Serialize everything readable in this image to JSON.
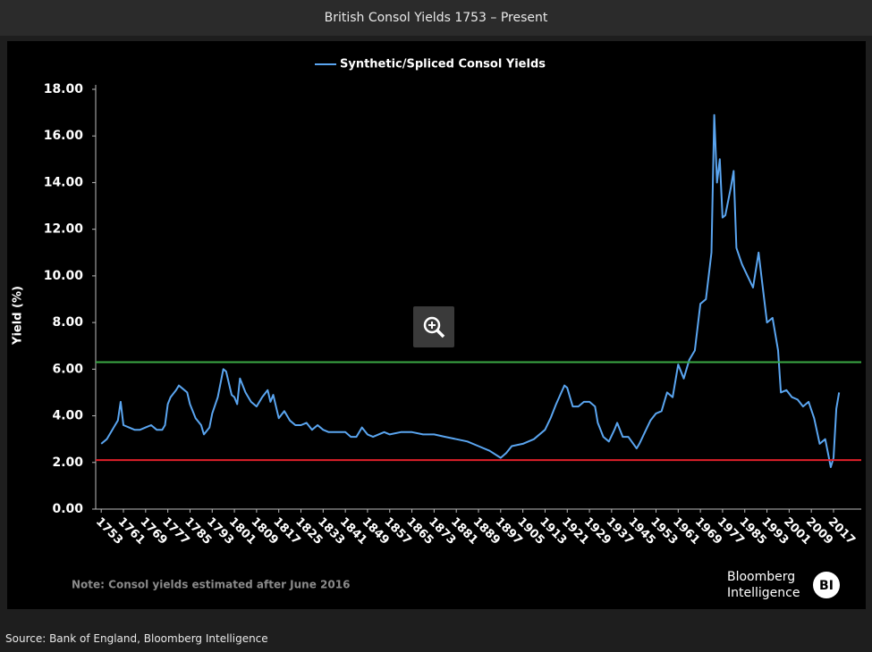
{
  "header": {
    "title": "British Consol Yields 1753 – Present"
  },
  "chart_data": {
    "type": "line",
    "legend": "Synthetic/Spliced Consol Yields",
    "ylabel": "Yield (%)",
    "series": [
      {
        "name": "Synthetic/Spliced Consol Yields",
        "color": "#5aa5f0",
        "x": [
          1753,
          1755,
          1757,
          1759,
          1760,
          1761,
          1763,
          1765,
          1767,
          1769,
          1771,
          1773,
          1775,
          1776,
          1777,
          1778,
          1780,
          1781,
          1782,
          1784,
          1785,
          1787,
          1789,
          1790,
          1792,
          1793,
          1795,
          1797,
          1798,
          1800,
          1801,
          1802,
          1803,
          1805,
          1807,
          1809,
          1811,
          1813,
          1814,
          1815,
          1817,
          1819,
          1821,
          1823,
          1825,
          1827,
          1829,
          1831,
          1833,
          1835,
          1837,
          1839,
          1841,
          1843,
          1845,
          1847,
          1849,
          1851,
          1853,
          1855,
          1857,
          1861,
          1865,
          1869,
          1873,
          1877,
          1881,
          1885,
          1889,
          1893,
          1897,
          1899,
          1901,
          1905,
          1909,
          1913,
          1915,
          1917,
          1920,
          1921,
          1923,
          1925,
          1927,
          1929,
          1931,
          1932,
          1934,
          1936,
          1938,
          1939,
          1941,
          1943,
          1946,
          1947,
          1949,
          1951,
          1953,
          1955,
          1957,
          1959,
          1961,
          1963,
          1965,
          1967,
          1969,
          1971,
          1973,
          1974,
          1975,
          1976,
          1977,
          1978,
          1980,
          1981,
          1982,
          1984,
          1986,
          1988,
          1990,
          1991,
          1993,
          1995,
          1997,
          1998,
          2000,
          2002,
          2004,
          2006,
          2008,
          2010,
          2012,
          2014,
          2016,
          2017,
          2018,
          2019
        ],
        "values": [
          2.8,
          3.0,
          3.4,
          3.8,
          4.6,
          3.6,
          3.5,
          3.4,
          3.4,
          3.5,
          3.6,
          3.4,
          3.4,
          3.6,
          4.5,
          4.8,
          5.1,
          5.3,
          5.2,
          5.0,
          4.5,
          3.9,
          3.6,
          3.2,
          3.5,
          4.1,
          4.8,
          6.0,
          5.9,
          4.9,
          4.8,
          4.5,
          5.6,
          5.0,
          4.6,
          4.4,
          4.8,
          5.1,
          4.6,
          4.9,
          3.9,
          4.2,
          3.8,
          3.6,
          3.6,
          3.7,
          3.4,
          3.6,
          3.4,
          3.3,
          3.3,
          3.3,
          3.3,
          3.1,
          3.1,
          3.5,
          3.2,
          3.1,
          3.2,
          3.3,
          3.2,
          3.3,
          3.3,
          3.2,
          3.2,
          3.1,
          3.0,
          2.9,
          2.7,
          2.5,
          2.2,
          2.4,
          2.7,
          2.8,
          3.0,
          3.4,
          3.9,
          4.5,
          5.3,
          5.2,
          4.4,
          4.4,
          4.6,
          4.6,
          4.4,
          3.7,
          3.1,
          2.9,
          3.4,
          3.7,
          3.1,
          3.1,
          2.6,
          2.8,
          3.3,
          3.8,
          4.1,
          4.2,
          5.0,
          4.8,
          6.2,
          5.6,
          6.4,
          6.8,
          8.8,
          9.0,
          11.0,
          16.9,
          14.0,
          15.0,
          12.5,
          12.6,
          13.8,
          14.5,
          11.2,
          10.5,
          10.0,
          9.5,
          11.0,
          10.0,
          8.0,
          8.2,
          6.8,
          5.0,
          5.1,
          4.8,
          4.7,
          4.4,
          4.6,
          3.9,
          2.8,
          3.0,
          1.8,
          2.2,
          4.3,
          5.0
        ]
      }
    ],
    "hlines": [
      {
        "value": 6.3,
        "color": "#3aa845"
      },
      {
        "value": 2.1,
        "color": "#e0202a"
      }
    ],
    "xlim": [
      1751,
      2027
    ],
    "xticks": [
      1753,
      1761,
      1769,
      1777,
      1785,
      1793,
      1801,
      1809,
      1817,
      1825,
      1833,
      1841,
      1849,
      1857,
      1865,
      1873,
      1881,
      1889,
      1897,
      1905,
      1913,
      1921,
      1929,
      1937,
      1945,
      1953,
      1961,
      1969,
      1977,
      1985,
      1993,
      2001,
      2009,
      2017
    ],
    "ylim": [
      0,
      18
    ],
    "yticks": [
      {
        "value": 0,
        "label": "0.00"
      },
      {
        "value": 2,
        "label": "2.00"
      },
      {
        "value": 4,
        "label": "4.00"
      },
      {
        "value": 6,
        "label": "6.00"
      },
      {
        "value": 8,
        "label": "8.00"
      },
      {
        "value": 10,
        "label": "10.00"
      },
      {
        "value": 12,
        "label": "12.00"
      },
      {
        "value": 14,
        "label": "14.00"
      },
      {
        "value": 16,
        "label": "16.00"
      },
      {
        "value": 18,
        "label": "18.00"
      }
    ],
    "note": "Note: Consol yields estimated after June 2016",
    "logo": {
      "lines": [
        "Bloomberg",
        "Intelligence"
      ],
      "badge": "BI"
    }
  },
  "footer": {
    "source": "Source: Bank of England, Bloomberg Intelligence"
  }
}
